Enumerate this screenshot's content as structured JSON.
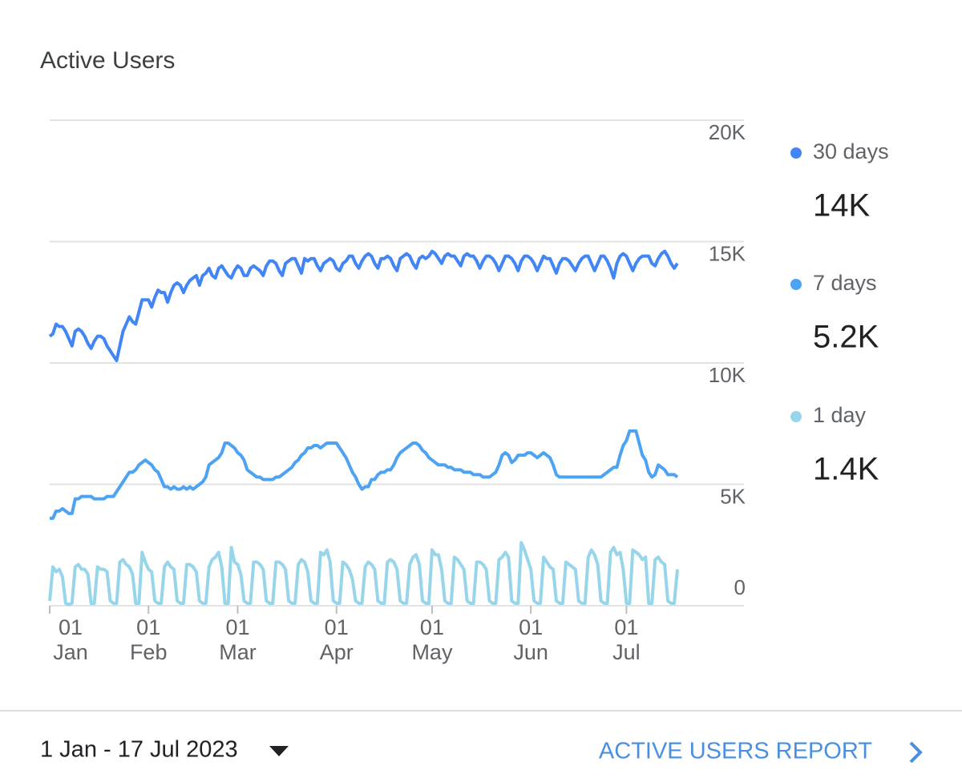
{
  "title": "Active Users",
  "chart_data": {
    "type": "line",
    "categories": [
      "01\nJan",
      null,
      null,
      null,
      null,
      null,
      null,
      null,
      null,
      null,
      null,
      null,
      null,
      null,
      null,
      null,
      null,
      null,
      null,
      null,
      null,
      null,
      null,
      null,
      null,
      null,
      null,
      null,
      null,
      null,
      null,
      "01\nFeb",
      null,
      null,
      null,
      null,
      null,
      null,
      null,
      null,
      null,
      null,
      null,
      null,
      null,
      null,
      null,
      null,
      null,
      null,
      null,
      null,
      null,
      null,
      null,
      null,
      null,
      null,
      null,
      "01\nMar",
      null,
      null,
      null,
      null,
      null,
      null,
      null,
      null,
      null,
      null,
      null,
      null,
      null,
      null,
      null,
      null,
      null,
      null,
      null,
      null,
      null,
      null,
      null,
      null,
      null,
      null,
      null,
      null,
      null,
      null,
      "01\nApr",
      null,
      null,
      null,
      null,
      null,
      null,
      null,
      null,
      null,
      null,
      null,
      null,
      null,
      null,
      null,
      null,
      null,
      null,
      null,
      null,
      null,
      null,
      null,
      null,
      null,
      null,
      null,
      null,
      null,
      "01\nMay",
      null,
      null,
      null,
      null,
      null,
      null,
      null,
      null,
      null,
      null,
      null,
      null,
      null,
      null,
      null,
      null,
      null,
      null,
      null,
      null,
      null,
      null,
      null,
      null,
      null,
      null,
      null,
      null,
      null,
      null,
      "01\nJun",
      null,
      null,
      null,
      null,
      null,
      null,
      null,
      null,
      null,
      null,
      null,
      null,
      null,
      null,
      null,
      null,
      null,
      null,
      null,
      null,
      null,
      null,
      null,
      null,
      null,
      null,
      null,
      null,
      null,
      "01\nJul",
      null,
      null,
      null,
      null,
      null,
      null,
      null,
      null,
      null,
      null,
      null,
      null,
      null,
      null,
      null,
      null
    ],
    "series": [
      {
        "name": "30 days",
        "color": "#4285f4",
        "summary": {
          "value": 14000,
          "label": "14K"
        },
        "values": [
          11100,
          11200,
          11600,
          11500,
          11500,
          11300,
          11000,
          10700,
          11300,
          11400,
          11300,
          11100,
          10800,
          10600,
          10900,
          11100,
          11100,
          11000,
          10700,
          10500,
          10300,
          10100,
          10700,
          11300,
          11600,
          11900,
          11700,
          11600,
          12100,
          12600,
          12600,
          12600,
          12300,
          12700,
          13000,
          12900,
          12900,
          12500,
          12900,
          13200,
          13300,
          13200,
          12900,
          13200,
          13400,
          13500,
          13600,
          13200,
          13600,
          13700,
          13900,
          13600,
          13500,
          13900,
          14000,
          13800,
          13600,
          13500,
          13800,
          14000,
          13900,
          13600,
          13600,
          13900,
          14000,
          13900,
          13800,
          13600,
          14000,
          14200,
          14200,
          14100,
          13800,
          13600,
          14100,
          14200,
          14300,
          14300,
          14000,
          13700,
          14300,
          14200,
          14300,
          14300,
          14000,
          13800,
          14100,
          14200,
          14300,
          14200,
          13900,
          13800,
          14100,
          14200,
          14400,
          14400,
          14100,
          13900,
          14200,
          14400,
          14500,
          14400,
          14100,
          13900,
          14300,
          14300,
          14400,
          14300,
          14000,
          13800,
          14300,
          14400,
          14500,
          14400,
          14100,
          13900,
          14300,
          14400,
          14300,
          14400,
          14600,
          14500,
          14300,
          14100,
          14400,
          14500,
          14400,
          14400,
          14200,
          14000,
          14400,
          14500,
          14400,
          14400,
          14200,
          13900,
          14200,
          14400,
          14400,
          14300,
          14100,
          13800,
          14100,
          14400,
          14400,
          14300,
          14100,
          13800,
          14200,
          14400,
          14400,
          14300,
          14100,
          13800,
          14100,
          14400,
          14300,
          14300,
          14000,
          13700,
          14100,
          14300,
          14300,
          14200,
          14000,
          13800,
          14100,
          14300,
          14400,
          14400,
          14100,
          13800,
          14100,
          14400,
          14400,
          14200,
          13900,
          13500,
          14100,
          14400,
          14500,
          14400,
          14100,
          13800,
          14100,
          14300,
          14400,
          14400,
          14400,
          14100,
          14000,
          14300,
          14500,
          14600,
          14400,
          14100,
          13900,
          14100
        ]
      },
      {
        "name": "7 days",
        "color": "#4da3f2",
        "summary": {
          "value": 5200,
          "label": "5.2K"
        },
        "values": [
          3600,
          3600,
          3900,
          3900,
          4000,
          3900,
          3800,
          3800,
          4400,
          4400,
          4500,
          4500,
          4500,
          4500,
          4400,
          4400,
          4400,
          4400,
          4500,
          4500,
          4500,
          4700,
          4900,
          5100,
          5300,
          5500,
          5500,
          5600,
          5800,
          5900,
          6000,
          5900,
          5800,
          5600,
          5500,
          5200,
          4900,
          4900,
          4800,
          4900,
          4800,
          4800,
          4900,
          4800,
          4900,
          4800,
          4900,
          5000,
          5100,
          5300,
          5800,
          5900,
          6000,
          6100,
          6300,
          6700,
          6700,
          6600,
          6500,
          6300,
          6200,
          6000,
          5600,
          5500,
          5400,
          5300,
          5300,
          5200,
          5200,
          5200,
          5200,
          5300,
          5300,
          5400,
          5500,
          5600,
          5700,
          5900,
          6000,
          6200,
          6300,
          6500,
          6500,
          6600,
          6600,
          6500,
          6600,
          6700,
          6700,
          6700,
          6700,
          6500,
          6300,
          6100,
          5800,
          5500,
          5300,
          5000,
          4800,
          4900,
          4900,
          5200,
          5200,
          5400,
          5500,
          5500,
          5600,
          5600,
          5800,
          6100,
          6300,
          6400,
          6500,
          6600,
          6700,
          6700,
          6600,
          6400,
          6300,
          6100,
          6000,
          5900,
          5800,
          5800,
          5800,
          5700,
          5700,
          5600,
          5600,
          5600,
          5500,
          5500,
          5500,
          5400,
          5400,
          5400,
          5300,
          5300,
          5300,
          5400,
          5500,
          5800,
          6200,
          6300,
          6200,
          5900,
          6000,
          6200,
          6200,
          6200,
          6300,
          6300,
          6200,
          6100,
          6200,
          6300,
          6200,
          6100,
          5800,
          5400,
          5300,
          5300,
          5300,
          5300,
          5300,
          5300,
          5300,
          5300,
          5300,
          5300,
          5300,
          5300,
          5300,
          5300,
          5400,
          5500,
          5600,
          5700,
          5700,
          6200,
          6600,
          6800,
          7200,
          7200,
          7200,
          6700,
          6200,
          6000,
          5500,
          5300,
          5400,
          5800,
          5700,
          5600,
          5400,
          5400,
          5400,
          5300
        ]
      },
      {
        "name": "1 day",
        "color": "#97d5ea",
        "summary": {
          "value": 1400,
          "label": "1.4K"
        },
        "values": [
          200,
          1600,
          1400,
          1500,
          1200,
          100,
          50,
          100,
          1600,
          1700,
          1500,
          1500,
          1300,
          100,
          100,
          1600,
          1500,
          1500,
          1400,
          200,
          100,
          100,
          1800,
          1900,
          1700,
          1600,
          1300,
          100,
          100,
          2200,
          1800,
          1500,
          1400,
          200,
          100,
          100,
          1600,
          1800,
          1600,
          1500,
          200,
          100,
          100,
          1700,
          1700,
          1600,
          1400,
          200,
          100,
          100,
          1600,
          1900,
          2000,
          2200,
          1600,
          100,
          100,
          2400,
          1800,
          1700,
          1300,
          200,
          100,
          100,
          1800,
          1800,
          1700,
          1500,
          200,
          100,
          100,
          1800,
          1800,
          1700,
          1500,
          200,
          100,
          100,
          1700,
          1900,
          1800,
          1400,
          200,
          100,
          100,
          2200,
          2100,
          2300,
          1800,
          200,
          100,
          100,
          1800,
          1700,
          1500,
          1100,
          200,
          100,
          100,
          1600,
          1800,
          1700,
          1500,
          200,
          100,
          100,
          1800,
          1900,
          1800,
          1500,
          200,
          100,
          100,
          1700,
          2000,
          2100,
          1700,
          200,
          100,
          100,
          2300,
          2100,
          2100,
          1500,
          200,
          100,
          100,
          2000,
          1900,
          1700,
          1500,
          200,
          100,
          100,
          1800,
          1800,
          1700,
          1500,
          200,
          100,
          100,
          1900,
          2000,
          2200,
          2000,
          200,
          100,
          100,
          2600,
          2300,
          1900,
          1500,
          200,
          100,
          100,
          2000,
          1800,
          1600,
          1500,
          200,
          100,
          100,
          1800,
          1700,
          1600,
          1500,
          200,
          100,
          100,
          2000,
          2300,
          2100,
          1700,
          200,
          100,
          100,
          2200,
          2400,
          2100,
          2200,
          1500,
          100,
          100,
          2300,
          2200,
          2100,
          1900,
          2000,
          100,
          100,
          1900,
          2000,
          1800,
          1700,
          200,
          100,
          100,
          1500
        ]
      }
    ],
    "ylim": [
      0,
      20000
    ],
    "yticks": [
      {
        "value": 0,
        "label": "0"
      },
      {
        "value": 5000,
        "label": "5K"
      },
      {
        "value": 10000,
        "label": "10K"
      },
      {
        "value": 15000,
        "label": "15K"
      },
      {
        "value": 20000,
        "label": "20K"
      }
    ],
    "grid": true
  },
  "footer": {
    "date_range": "1 Jan - 17 Jul 2023",
    "report_link": "ACTIVE USERS REPORT"
  }
}
